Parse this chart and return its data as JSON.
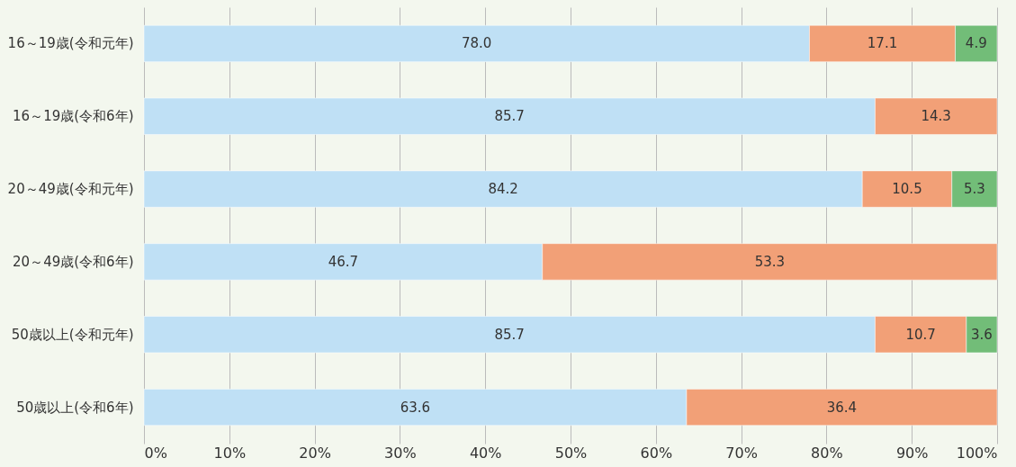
{
  "chart_data": {
    "type": "bar",
    "orientation": "horizontal",
    "stacked": true,
    "data_labels": true,
    "grid": "x",
    "categories": [
      "16～19歳(令和元年)",
      "16～19歳(令和6年)",
      "20～49歳(令和元年)",
      "20～49歳(令和6年)",
      "50歳以上(令和元年)",
      "50歳以上(令和6年)"
    ],
    "xlim": [
      0,
      100
    ],
    "xticks": [
      {
        "value": 0,
        "label": "0%"
      },
      {
        "value": 10,
        "label": "10%"
      },
      {
        "value": 20,
        "label": "20%"
      },
      {
        "value": 30,
        "label": "30%"
      },
      {
        "value": 40,
        "label": "40%"
      },
      {
        "value": 50,
        "label": "50%"
      },
      {
        "value": 60,
        "label": "60%"
      },
      {
        "value": 70,
        "label": "70%"
      },
      {
        "value": 80,
        "label": "80%"
      },
      {
        "value": 90,
        "label": "90%"
      },
      {
        "value": 100,
        "label": "100%"
      }
    ],
    "series": [
      {
        "color": "#bfe0f5",
        "values": [
          78.0,
          85.7,
          84.2,
          46.7,
          85.7,
          63.6
        ],
        "value_labels": [
          "78.0",
          "85.7",
          "84.2",
          "46.7",
          "85.7",
          "63.6"
        ]
      },
      {
        "color": "#f2a077",
        "values": [
          17.1,
          14.3,
          10.5,
          53.3,
          10.7,
          36.4
        ],
        "value_labels": [
          "17.1",
          "14.3",
          "10.5",
          "53.3",
          "10.7",
          "36.4"
        ]
      },
      {
        "color": "#72bd78",
        "values": [
          4.9,
          null,
          5.3,
          null,
          3.6,
          null
        ],
        "value_labels": [
          "4.9",
          null,
          "5.3",
          null,
          "3.6",
          null
        ]
      }
    ]
  }
}
